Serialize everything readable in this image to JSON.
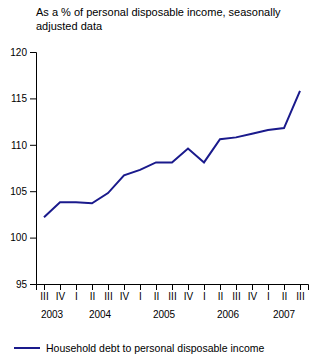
{
  "chart_data": {
    "type": "line",
    "title": "As a % of personal disposable income, seasonally",
    "subtitle": "adjusted data",
    "categories": [
      "III",
      "IV",
      "I",
      "II",
      "III",
      "IV",
      "I",
      "II",
      "III",
      "IV",
      "I",
      "II",
      "III",
      "IV",
      "I",
      "II",
      "III"
    ],
    "annotations": [
      "2003",
      "2004",
      "2005",
      "2006",
      "2007"
    ],
    "series": [
      {
        "name": "Household debt to personal disposable income",
        "color": "#1a1a8c",
        "values": [
          102.2,
          103.8,
          103.8,
          103.7,
          104.8,
          106.7,
          107.3,
          108.1,
          108.1,
          109.6,
          108.1,
          110.6,
          110.8,
          111.2,
          111.6,
          111.8,
          115.8
        ]
      }
    ],
    "ylim": [
      95,
      120
    ],
    "yticks": [
      95,
      100,
      105,
      110,
      115,
      120
    ],
    "grid": false,
    "legend": "bottom"
  }
}
